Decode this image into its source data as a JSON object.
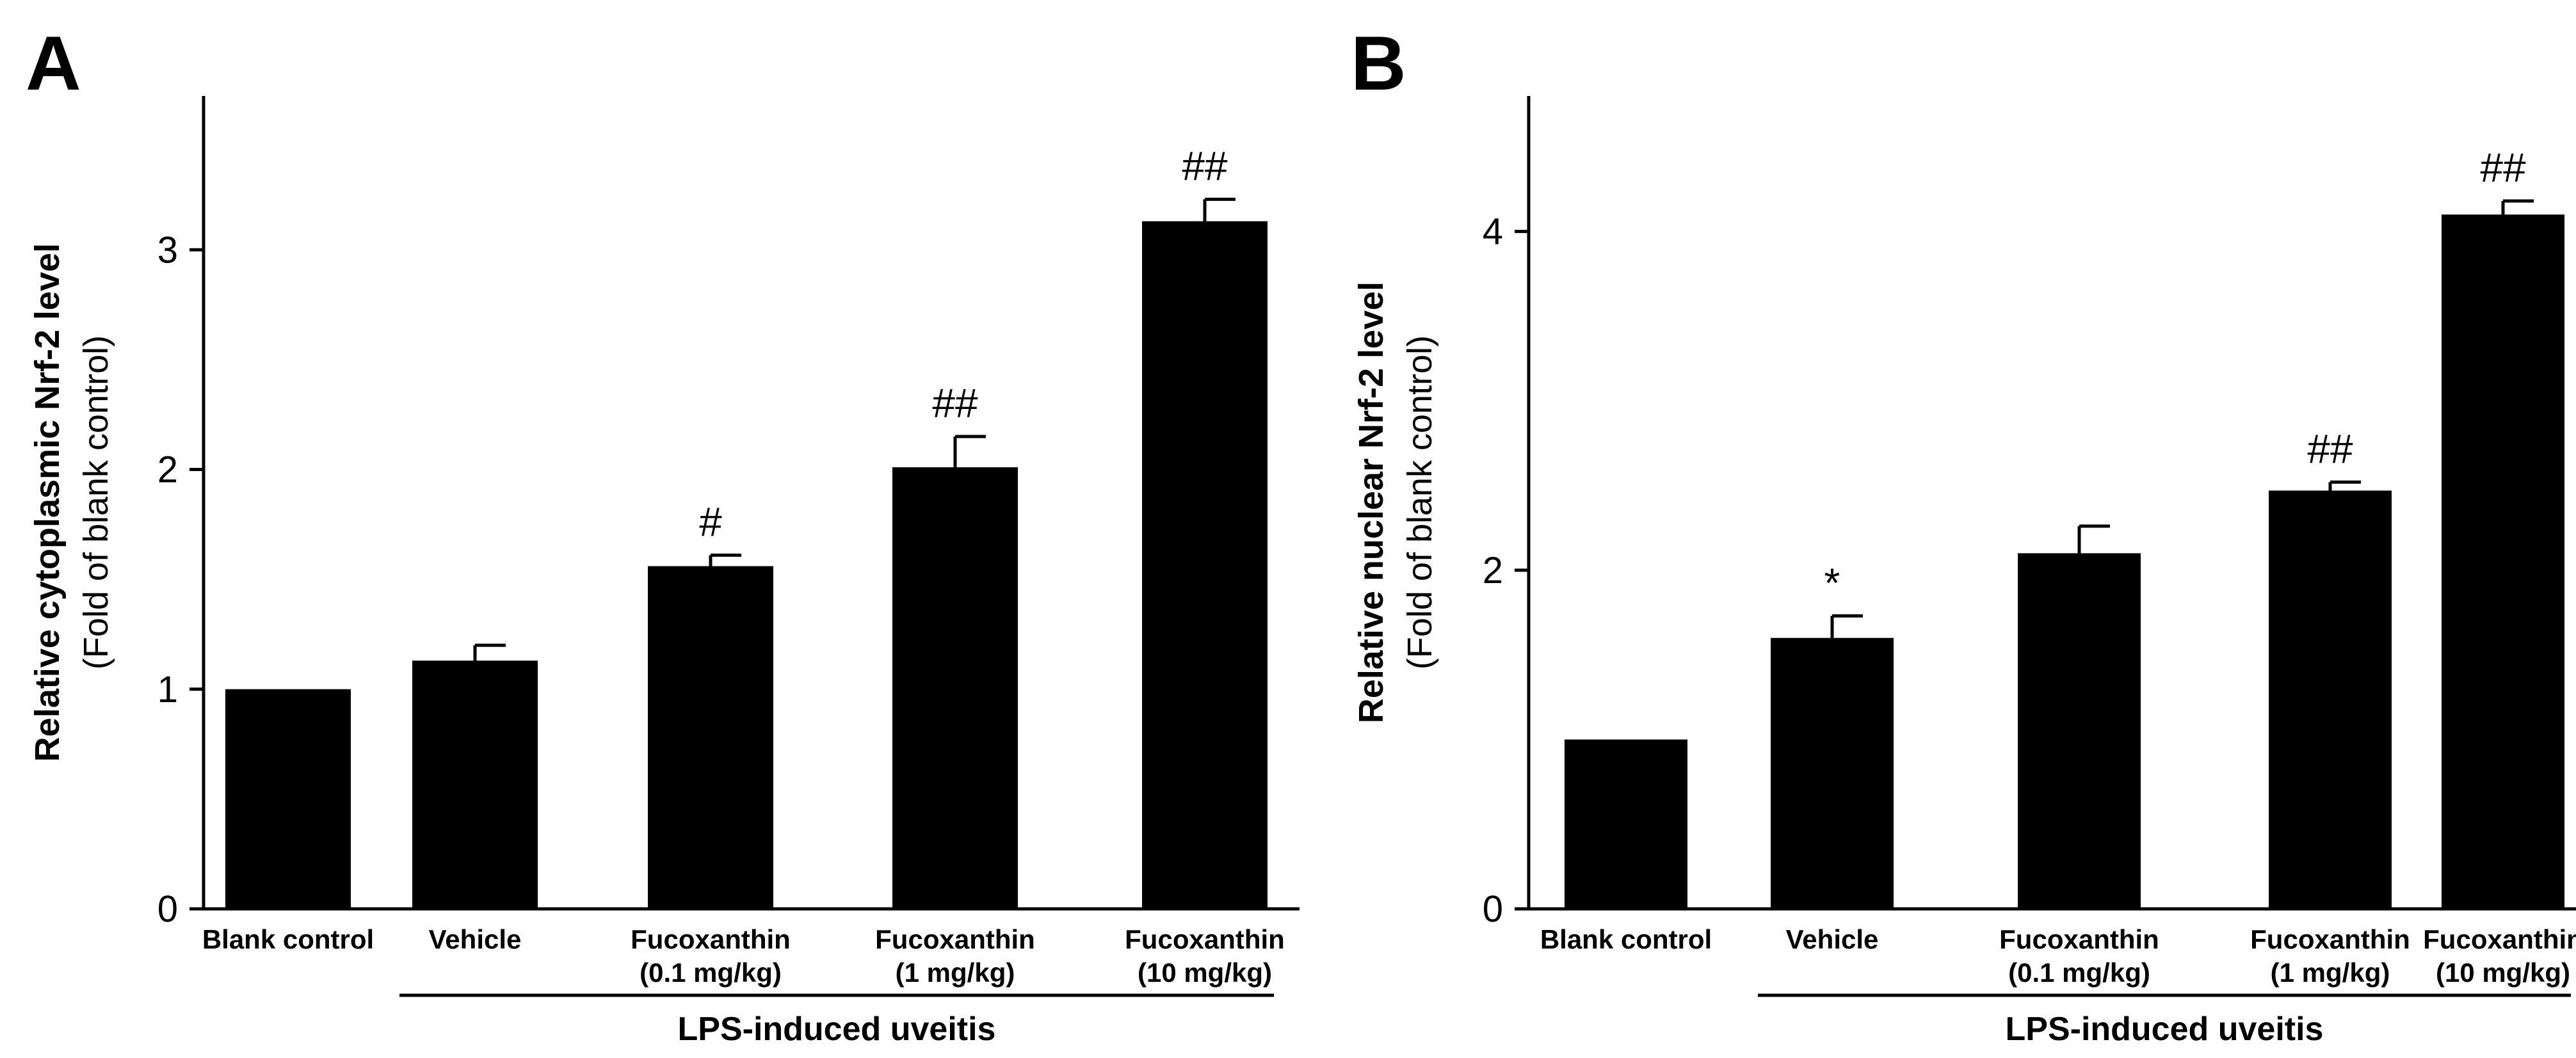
{
  "chart_data": [
    {
      "type": "bar",
      "panel_label": "A",
      "title": "",
      "ylabel": "Relative cytoplasmic Nrf-2 level",
      "ylabel_sub": "(Fold of blank control)",
      "xlabel": "",
      "ylim": [
        0,
        3.7
      ],
      "yticks": [
        0,
        1,
        2,
        3
      ],
      "categories": [
        [
          "Blank control"
        ],
        [
          "Vehicle"
        ],
        [
          "Fucoxanthin",
          "(0.1 mg/kg)"
        ],
        [
          "Fucoxanthin",
          "(1 mg/kg)"
        ],
        [
          "Fucoxanthin",
          "(10 mg/kg)"
        ]
      ],
      "values": [
        1.0,
        1.13,
        1.56,
        2.01,
        3.13
      ],
      "errors": [
        0.0,
        0.07,
        0.05,
        0.14,
        0.1
      ],
      "annotations": [
        "",
        "",
        "#",
        "##",
        "##"
      ],
      "group_label": "LPS-induced uveitis",
      "group_range": [
        1,
        4
      ]
    },
    {
      "type": "bar",
      "panel_label": "B",
      "title": "",
      "ylabel": "Relative nuclear Nrf-2 level",
      "ylabel_sub": "(Fold of blank control)",
      "xlabel": "",
      "ylim": [
        0,
        4.8
      ],
      "yticks": [
        0,
        2,
        4
      ],
      "categories": [
        [
          "Blank control"
        ],
        [
          "Vehicle"
        ],
        [
          "Fucoxanthin",
          "(0.1 mg/kg)"
        ],
        [
          "Fucoxanthin",
          "(1 mg/kg)"
        ],
        [
          "Fucoxanthin",
          "(10 mg/kg)"
        ]
      ],
      "values": [
        1.0,
        1.6,
        2.1,
        2.47,
        4.1
      ],
      "errors": [
        0.0,
        0.13,
        0.16,
        0.05,
        0.08
      ],
      "annotations": [
        "",
        "*",
        "",
        "##",
        "##"
      ],
      "group_label": "LPS-induced uveitis",
      "group_range": [
        1,
        4
      ]
    }
  ]
}
